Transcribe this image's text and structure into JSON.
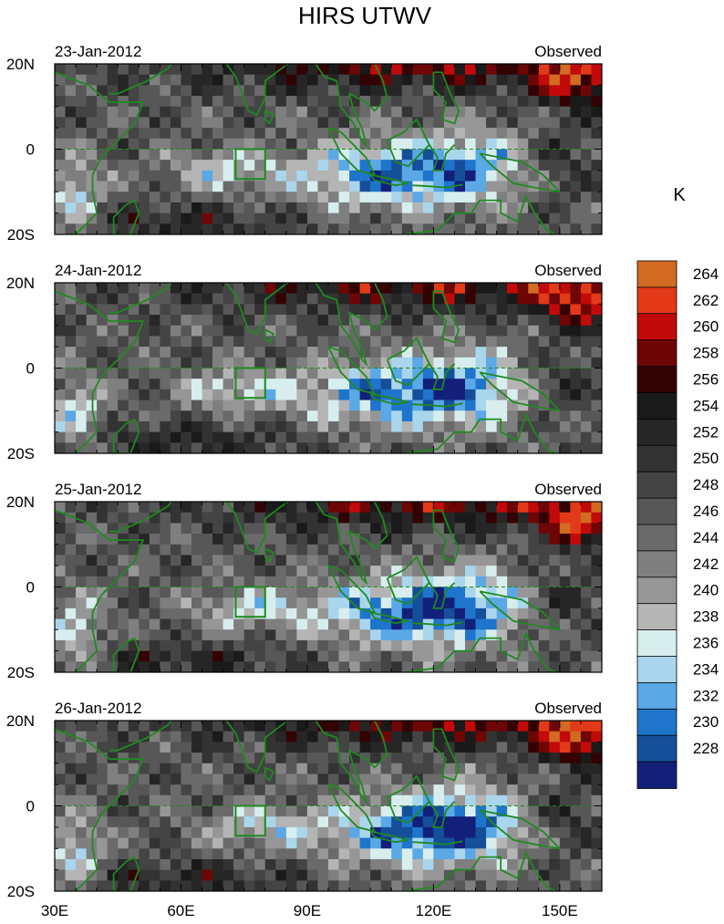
{
  "chart_data": {
    "type": "heatmap",
    "title": "HIRS UTWV",
    "units_label": "K",
    "panels": [
      {
        "date": "23-Jan-2012",
        "label": "Observed"
      },
      {
        "date": "24-Jan-2012",
        "label": "Observed"
      },
      {
        "date": "25-Jan-2012",
        "label": "Observed"
      },
      {
        "date": "26-Jan-2012",
        "label": "Observed"
      }
    ],
    "xlim": [
      30,
      160
    ],
    "ylim": [
      -20,
      20
    ],
    "x_ticks": [
      {
        "value": 30,
        "label": "30E"
      },
      {
        "value": 60,
        "label": "60E"
      },
      {
        "value": 90,
        "label": "90E"
      },
      {
        "value": 120,
        "label": "120E"
      },
      {
        "value": 150,
        "label": "150E"
      }
    ],
    "y_ticks": [
      {
        "value": 20,
        "label": "20N"
      },
      {
        "value": 0,
        "label": "0"
      },
      {
        "value": -20,
        "label": "20S"
      }
    ],
    "box_region": {
      "lon": [
        73,
        80
      ],
      "lat": [
        -7,
        0
      ]
    },
    "colorbar": {
      "levels": [
        {
          "label": "264",
          "color": "#d26a22"
        },
        {
          "label": "262",
          "color": "#e23a18"
        },
        {
          "label": "260",
          "color": "#c20a0a"
        },
        {
          "label": "258",
          "color": "#6e0606"
        },
        {
          "label": "256",
          "color": "#330303"
        },
        {
          "label": "254",
          "color": "#1a1a1a"
        },
        {
          "label": "252",
          "color": "#262626"
        },
        {
          "label": "250",
          "color": "#333333"
        },
        {
          "label": "248",
          "color": "#444444"
        },
        {
          "label": "246",
          "color": "#575757"
        },
        {
          "label": "244",
          "color": "#6a6a6a"
        },
        {
          "label": "242",
          "color": "#7f7f7f"
        },
        {
          "label": "240",
          "color": "#969696"
        },
        {
          "label": "238",
          "color": "#b4b4b4"
        },
        {
          "label": "236",
          "color": "#d8eeee"
        },
        {
          "label": "234",
          "color": "#a9d6ec"
        },
        {
          "label": "232",
          "color": "#5aa8e6"
        },
        {
          "label": "230",
          "color": "#1f74cc"
        },
        {
          "label": "228",
          "color": "#154f99"
        }
      ],
      "bottom_color": "#13207a"
    }
  }
}
